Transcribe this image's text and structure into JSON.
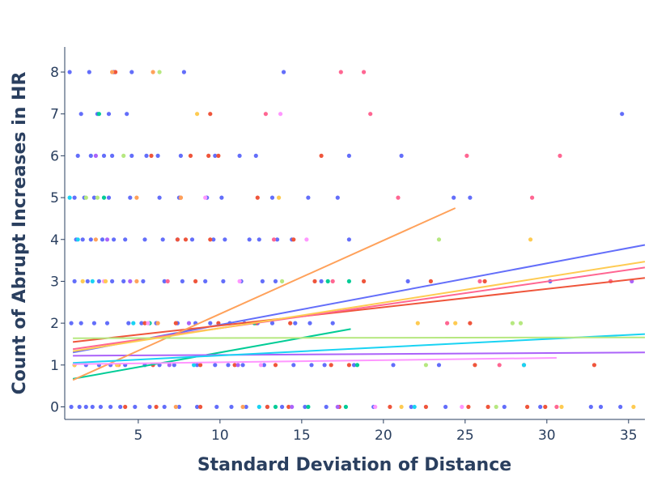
{
  "chart_data": {
    "type": "scatter",
    "title": "",
    "xlabel": "Standard Deviation of Distance",
    "ylabel": "Count of Abrupt Increases in HR",
    "xlim": [
      0.5,
      36
    ],
    "ylim": [
      -0.3,
      8.6
    ],
    "x_ticks": [
      5,
      10,
      15,
      20,
      25,
      30,
      35
    ],
    "y_ticks": [
      0,
      1,
      2,
      3,
      4,
      5,
      6,
      7,
      8
    ],
    "grid": false,
    "legend": "none",
    "series": [
      {
        "name": "series-blue",
        "color": "#636efa",
        "points": [
          [
            0.8,
            8
          ],
          [
            2,
            8
          ],
          [
            3.5,
            8
          ],
          [
            4.6,
            8
          ],
          [
            7.8,
            8
          ],
          [
            13.9,
            8
          ],
          [
            1.5,
            7
          ],
          [
            2.5,
            7
          ],
          [
            3.2,
            7
          ],
          [
            4.3,
            7
          ],
          [
            34.6,
            7
          ],
          [
            1.3,
            6
          ],
          [
            2.1,
            6
          ],
          [
            2.9,
            6
          ],
          [
            3.4,
            6
          ],
          [
            4.6,
            6
          ],
          [
            5.5,
            6
          ],
          [
            6.2,
            6
          ],
          [
            7.6,
            6
          ],
          [
            9.7,
            6
          ],
          [
            11.2,
            6
          ],
          [
            12.2,
            6
          ],
          [
            17.9,
            6
          ],
          [
            21.1,
            6
          ],
          [
            1.1,
            5
          ],
          [
            1.7,
            5
          ],
          [
            2.3,
            5
          ],
          [
            3.2,
            5
          ],
          [
            4.5,
            5
          ],
          [
            6.3,
            5
          ],
          [
            7.5,
            5
          ],
          [
            9.2,
            5
          ],
          [
            10.1,
            5
          ],
          [
            13.2,
            5
          ],
          [
            15.4,
            5
          ],
          [
            17.2,
            5
          ],
          [
            24.3,
            5
          ],
          [
            25.3,
            5
          ],
          [
            1.2,
            4
          ],
          [
            1.6,
            4
          ],
          [
            2.1,
            4
          ],
          [
            2.8,
            4
          ],
          [
            3.5,
            4
          ],
          [
            4.2,
            4
          ],
          [
            5.4,
            4
          ],
          [
            6.5,
            4
          ],
          [
            7.4,
            4
          ],
          [
            8.3,
            4
          ],
          [
            9.6,
            4
          ],
          [
            10.3,
            4
          ],
          [
            11.8,
            4
          ],
          [
            12.4,
            4
          ],
          [
            13.5,
            4
          ],
          [
            14.4,
            4
          ],
          [
            17.9,
            4
          ],
          [
            1.1,
            3
          ],
          [
            1.9,
            3
          ],
          [
            2.6,
            3
          ],
          [
            3.4,
            3
          ],
          [
            4.1,
            3
          ],
          [
            5.3,
            3
          ],
          [
            6.6,
            3
          ],
          [
            7.7,
            3
          ],
          [
            9.1,
            3
          ],
          [
            10.2,
            3
          ],
          [
            11.3,
            3
          ],
          [
            12.6,
            3
          ],
          [
            13.4,
            3
          ],
          [
            16.2,
            3
          ],
          [
            21.5,
            3
          ],
          [
            30.2,
            3
          ],
          [
            0.9,
            2
          ],
          [
            1.5,
            2
          ],
          [
            2.3,
            2
          ],
          [
            3.1,
            2
          ],
          [
            4.4,
            2
          ],
          [
            5.2,
            2
          ],
          [
            6.1,
            2
          ],
          [
            7.4,
            2
          ],
          [
            8.5,
            2
          ],
          [
            9.4,
            2
          ],
          [
            10.6,
            2
          ],
          [
            11.5,
            2
          ],
          [
            12.3,
            2
          ],
          [
            13.2,
            2
          ],
          [
            14.6,
            2
          ],
          [
            15.5,
            2
          ],
          [
            16.9,
            2
          ],
          [
            1.1,
            1
          ],
          [
            1.8,
            1
          ],
          [
            2.6,
            1
          ],
          [
            3.3,
            1
          ],
          [
            4.2,
            1
          ],
          [
            5.4,
            1
          ],
          [
            6.3,
            1
          ],
          [
            7.2,
            1
          ],
          [
            8.6,
            1
          ],
          [
            9.7,
            1
          ],
          [
            10.5,
            1
          ],
          [
            11.4,
            1
          ],
          [
            12.7,
            1
          ],
          [
            14.5,
            1
          ],
          [
            15.6,
            1
          ],
          [
            16.4,
            1
          ],
          [
            18.2,
            1
          ],
          [
            20.6,
            1
          ],
          [
            23.4,
            1
          ],
          [
            0.9,
            0
          ],
          [
            1.4,
            0
          ],
          [
            1.8,
            0
          ],
          [
            2.2,
            0
          ],
          [
            2.7,
            0
          ],
          [
            3.3,
            0
          ],
          [
            3.9,
            0
          ],
          [
            4.8,
            0
          ],
          [
            5.7,
            0
          ],
          [
            6.6,
            0
          ],
          [
            7.5,
            0
          ],
          [
            8.6,
            0
          ],
          [
            9.8,
            0
          ],
          [
            10.7,
            0
          ],
          [
            11.6,
            0
          ],
          [
            12.9,
            0
          ],
          [
            13.8,
            0
          ],
          [
            15.2,
            0
          ],
          [
            16.5,
            0
          ],
          [
            19.4,
            0
          ],
          [
            21.7,
            0
          ],
          [
            23.8,
            0
          ],
          [
            27.4,
            0
          ],
          [
            29.6,
            0
          ],
          [
            32.7,
            0
          ],
          [
            33.3,
            0
          ],
          [
            34.5,
            0
          ]
        ],
        "trend": [
          [
            1,
            1.3
          ],
          [
            36,
            3.87
          ]
        ]
      },
      {
        "name": "series-red",
        "color": "#ef553b",
        "points": [
          [
            3.6,
            8
          ],
          [
            9.4,
            7
          ],
          [
            5.8,
            6
          ],
          [
            8.2,
            6
          ],
          [
            9.3,
            6
          ],
          [
            9.9,
            6
          ],
          [
            16.2,
            6
          ],
          [
            7.6,
            5
          ],
          [
            12.3,
            5
          ],
          [
            7.4,
            4
          ],
          [
            7.9,
            4
          ],
          [
            9.4,
            4
          ],
          [
            14.5,
            4
          ],
          [
            8.5,
            3
          ],
          [
            15.8,
            3
          ],
          [
            18.8,
            3
          ],
          [
            22.9,
            3
          ],
          [
            26.2,
            3
          ],
          [
            5.4,
            2
          ],
          [
            7.3,
            2
          ],
          [
            9.9,
            2
          ],
          [
            12.2,
            2
          ],
          [
            14.3,
            2
          ],
          [
            25.3,
            2
          ],
          [
            5.9,
            1
          ],
          [
            8.8,
            1
          ],
          [
            10.9,
            1
          ],
          [
            13.4,
            1
          ],
          [
            16.8,
            1
          ],
          [
            17.9,
            1
          ],
          [
            25.6,
            1
          ],
          [
            28.6,
            1
          ],
          [
            32.9,
            1
          ],
          [
            4.2,
            0
          ],
          [
            6.1,
            0
          ],
          [
            8.8,
            0
          ],
          [
            12.9,
            0
          ],
          [
            14.2,
            0
          ],
          [
            17.3,
            0
          ],
          [
            20.4,
            0
          ],
          [
            22.6,
            0
          ],
          [
            25.2,
            0
          ],
          [
            26.4,
            0
          ],
          [
            28.8,
            0
          ],
          [
            29.9,
            0
          ]
        ],
        "trend": [
          [
            1,
            1.55
          ],
          [
            36,
            3.08
          ]
        ]
      },
      {
        "name": "series-green",
        "color": "#00cc96",
        "points": [
          [
            2.6,
            7
          ],
          [
            2.9,
            5
          ],
          [
            16.6,
            3
          ],
          [
            17.9,
            3
          ],
          [
            5.7,
            2
          ],
          [
            12.1,
            2
          ],
          [
            18.4,
            1
          ],
          [
            15.4,
            0
          ],
          [
            17.7,
            0
          ],
          [
            13.4,
            0
          ]
        ],
        "trend": [
          [
            1,
            0.67
          ],
          [
            18,
            1.86
          ]
        ]
      },
      {
        "name": "series-purple",
        "color": "#ab63fa",
        "points": [
          [
            2.4,
            6
          ],
          [
            3.1,
            4
          ],
          [
            4.5,
            3
          ],
          [
            8.1,
            2
          ],
          [
            6.9,
            1
          ],
          [
            11.1,
            1
          ],
          [
            14.4,
            0
          ],
          [
            17.2,
            0
          ],
          [
            35.2,
            3
          ]
        ],
        "trend": [
          [
            1,
            1.22
          ],
          [
            36,
            1.3
          ]
        ]
      },
      {
        "name": "series-orange",
        "color": "#ffa15a",
        "points": [
          [
            5.9,
            8
          ],
          [
            3.4,
            8
          ],
          [
            4.9,
            5
          ],
          [
            7.6,
            5
          ],
          [
            2.4,
            4
          ],
          [
            4.9,
            3
          ],
          [
            6.2,
            2
          ],
          [
            3.8,
            1
          ],
          [
            7.3,
            0
          ],
          [
            11.4,
            0
          ]
        ],
        "trend": [
          [
            1,
            0.64
          ],
          [
            24.4,
            4.75
          ]
        ]
      },
      {
        "name": "series-cyan",
        "color": "#19d3f3",
        "points": [
          [
            0.8,
            5
          ],
          [
            1.3,
            4
          ],
          [
            2.2,
            3
          ],
          [
            4.7,
            2
          ],
          [
            8.4,
            1
          ],
          [
            28.6,
            1
          ],
          [
            12.4,
            0
          ],
          [
            21.9,
            0
          ]
        ],
        "trend": [
          [
            1,
            1.05
          ],
          [
            36,
            1.74
          ]
        ]
      },
      {
        "name": "series-pink",
        "color": "#ff6692",
        "points": [
          [
            17.4,
            8
          ],
          [
            18.8,
            8
          ],
          [
            12.8,
            7
          ],
          [
            19.2,
            7
          ],
          [
            25.1,
            6
          ],
          [
            30.8,
            6
          ],
          [
            20.9,
            5
          ],
          [
            29.1,
            5
          ],
          [
            13.3,
            4
          ],
          [
            6.8,
            3
          ],
          [
            16.9,
            3
          ],
          [
            25.9,
            3
          ],
          [
            33.9,
            3
          ],
          [
            23.9,
            2
          ],
          [
            27.1,
            1
          ],
          [
            30.6,
            0
          ]
        ],
        "trend": [
          [
            1,
            1.38
          ],
          [
            36,
            3.33
          ]
        ]
      },
      {
        "name": "series-lime",
        "color": "#b6e880",
        "points": [
          [
            6.3,
            8
          ],
          [
            4.1,
            6
          ],
          [
            1.8,
            5
          ],
          [
            2.5,
            5
          ],
          [
            23.4,
            4
          ],
          [
            13.8,
            3
          ],
          [
            27.9,
            2
          ],
          [
            28.4,
            2
          ],
          [
            22.6,
            1
          ],
          [
            26.9,
            0
          ]
        ],
        "trend": [
          [
            1,
            1.64
          ],
          [
            36,
            1.66
          ]
        ]
      },
      {
        "name": "series-magenta",
        "color": "#ff97ff",
        "points": [
          [
            13.7,
            7
          ],
          [
            9.1,
            5
          ],
          [
            15.3,
            4
          ],
          [
            2.9,
            3
          ],
          [
            11.2,
            3
          ],
          [
            5.6,
            2
          ],
          [
            12.5,
            1
          ],
          [
            19.5,
            0
          ],
          [
            24.8,
            0
          ]
        ],
        "trend": [
          [
            1,
            1.02
          ],
          [
            30.6,
            1.17
          ]
        ]
      },
      {
        "name": "series-yellow",
        "color": "#fecb52",
        "points": [
          [
            8.6,
            7
          ],
          [
            13.6,
            5
          ],
          [
            29.0,
            4
          ],
          [
            1.6,
            3
          ],
          [
            3.0,
            3
          ],
          [
            22.1,
            2
          ],
          [
            24.4,
            2
          ],
          [
            1.1,
            1
          ],
          [
            3.7,
            1
          ],
          [
            21.1,
            0
          ],
          [
            30.9,
            0
          ],
          [
            35.3,
            0
          ]
        ],
        "trend": [
          [
            1,
            1.33
          ],
          [
            36,
            3.47
          ]
        ]
      }
    ]
  }
}
